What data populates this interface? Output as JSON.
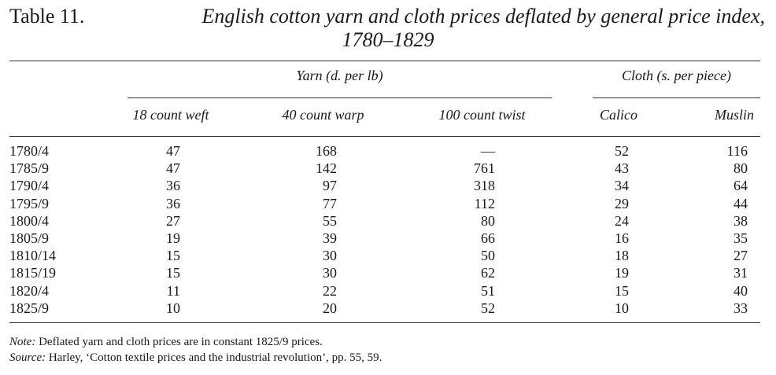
{
  "title": {
    "label": "Table 11.",
    "text": "English cotton yarn and cloth prices deflated by general price index,",
    "subtitle": "1780–1829"
  },
  "groups": {
    "yarn": "Yarn (d. per lb)",
    "cloth": "Cloth (s. per piece)"
  },
  "columns": [
    "18 count weft",
    "40 count warp",
    "100 count twist",
    "Calico",
    "Muslin"
  ],
  "rows": [
    {
      "period": "1780/4",
      "weft18": "47",
      "warp40": "168",
      "twist100": "—",
      "calico": "52",
      "muslin": "116"
    },
    {
      "period": "1785/9",
      "weft18": "47",
      "warp40": "142",
      "twist100": "761",
      "calico": "43",
      "muslin": "80"
    },
    {
      "period": "1790/4",
      "weft18": "36",
      "warp40": "97",
      "twist100": "318",
      "calico": "34",
      "muslin": "64"
    },
    {
      "period": "1795/9",
      "weft18": "36",
      "warp40": "77",
      "twist100": "112",
      "calico": "29",
      "muslin": "44"
    },
    {
      "period": "1800/4",
      "weft18": "27",
      "warp40": "55",
      "twist100": "80",
      "calico": "24",
      "muslin": "38"
    },
    {
      "period": "1805/9",
      "weft18": "19",
      "warp40": "39",
      "twist100": "66",
      "calico": "16",
      "muslin": "35"
    },
    {
      "period": "1810/14",
      "weft18": "15",
      "warp40": "30",
      "twist100": "50",
      "calico": "18",
      "muslin": "27"
    },
    {
      "period": "1815/19",
      "weft18": "15",
      "warp40": "30",
      "twist100": "62",
      "calico": "19",
      "muslin": "31"
    },
    {
      "period": "1820/4",
      "weft18": "11",
      "warp40": "22",
      "twist100": "51",
      "calico": "15",
      "muslin": "40"
    },
    {
      "period": "1825/9",
      "weft18": "10",
      "warp40": "20",
      "twist100": "52",
      "calico": "10",
      "muslin": "33"
    }
  ],
  "notes": {
    "note_label": "Note:",
    "note_text": " Deflated yarn and cloth prices are in constant 1825/9 prices.",
    "source_label": "Source:",
    "source_text": " Harley, ‘Cotton textile prices and the industrial revolution’, pp. 55, 59."
  }
}
